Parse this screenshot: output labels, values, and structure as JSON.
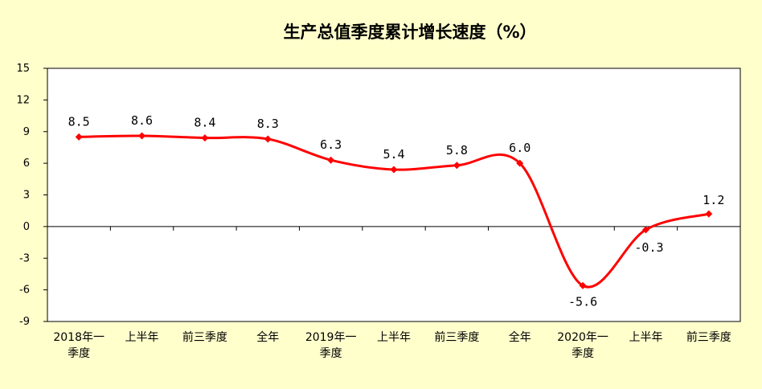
{
  "chart_data": {
    "type": "line",
    "title": "生产总值季度累计增长速度（%）",
    "categories": [
      [
        "2018年一",
        "季度"
      ],
      [
        "上半年"
      ],
      [
        "前三季度"
      ],
      [
        "全年"
      ],
      [
        "2019年一",
        "季度"
      ],
      [
        "上半年"
      ],
      [
        "前三季度"
      ],
      [
        "全年"
      ],
      [
        "2020年一",
        "季度"
      ],
      [
        "上半年"
      ],
      [
        "前三季度"
      ]
    ],
    "series": [
      {
        "values": [
          8.5,
          8.6,
          8.4,
          8.3,
          6.3,
          5.4,
          5.8,
          6.0,
          -5.6,
          -0.3,
          1.2
        ],
        "labels": [
          "8.5",
          "8.6",
          "8.4",
          "8.3",
          "6.3",
          "5.4",
          "5.8",
          "6.0",
          "-5.6",
          "-0.3",
          "1.2"
        ],
        "color": "#ff0000"
      }
    ],
    "yticks": [
      "15",
      "12",
      "9",
      "6",
      "3",
      "0",
      "-3",
      "-6",
      "-9"
    ],
    "ylim": [
      -9,
      15
    ],
    "grid": false,
    "legend": "none",
    "colors": {
      "background": "#ffffcc",
      "plot_area": "#ffffff",
      "line": "#ff0000"
    }
  }
}
